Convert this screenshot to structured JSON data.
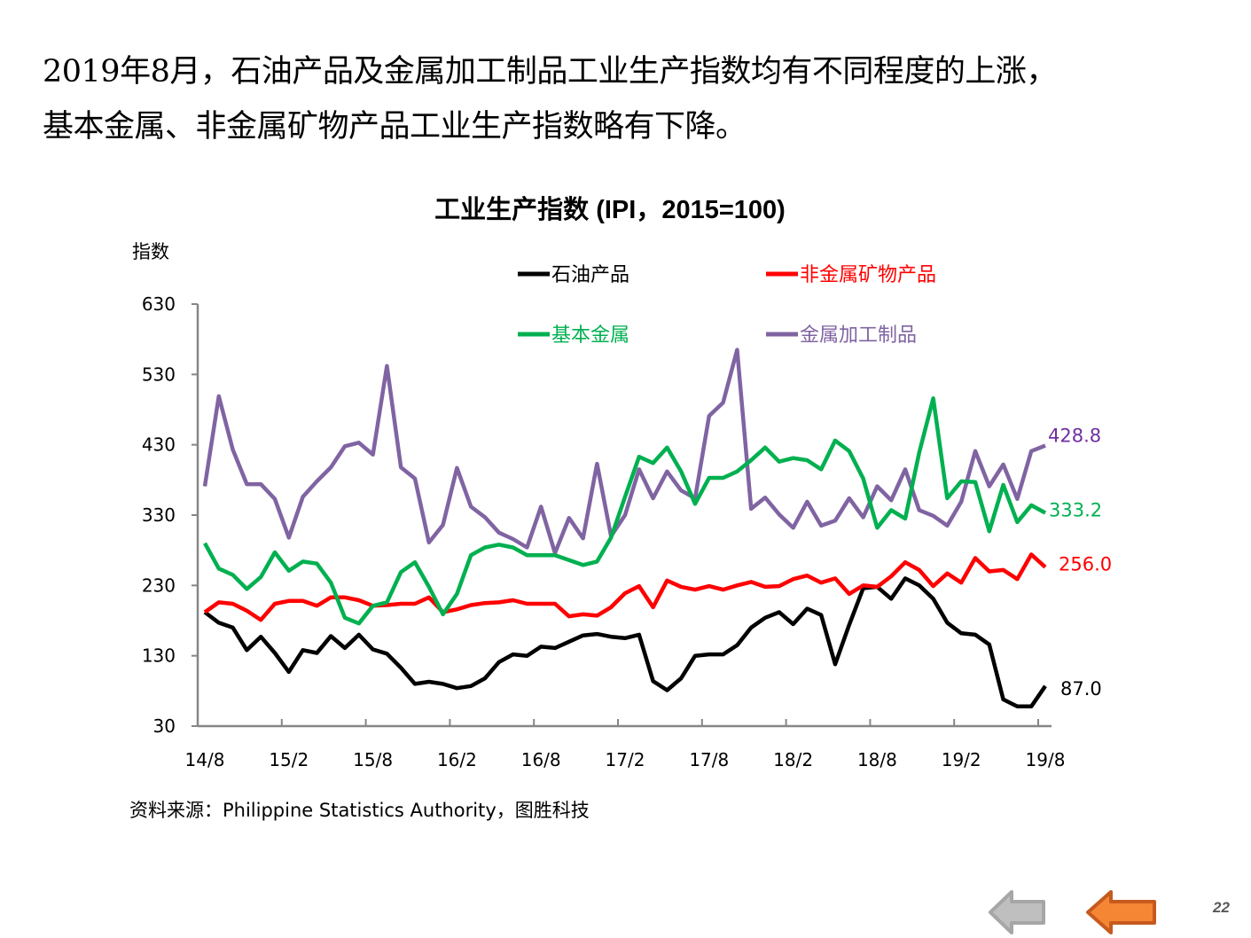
{
  "headline": {
    "line1": "2019年8月，石油产品及金属加工制品工业生产指数均有不同程度的上涨，",
    "line2": "基本金属、非金属矿物产品工业生产指数略有下降。"
  },
  "footer": {
    "source": "资料来源：Philippine  Statistics Authority，图胜科技",
    "page_number": "22"
  },
  "navigation": {
    "back_icon": "arrow-left-icon",
    "prev_icon": "arrow-left-icon",
    "back_color": "#A6A6A6",
    "prev_color": "#F58634"
  },
  "chart_data": {
    "type": "line",
    "title": "工业生产指数 (IPI，2015=100)",
    "ylabel": "指数",
    "xlabel": "",
    "ylim": [
      30,
      630
    ],
    "yticks": [
      "630",
      "530",
      "430",
      "330",
      "230",
      "130",
      "30"
    ],
    "ytick_values": [
      630,
      530,
      430,
      330,
      230,
      130,
      30
    ],
    "xtick_labels": [
      "14/8",
      "15/2",
      "15/8",
      "16/2",
      "16/8",
      "17/2",
      "17/8",
      "18/2",
      "18/8",
      "19/2",
      "19/8"
    ],
    "xtick_index": [
      0,
      6,
      12,
      18,
      24,
      30,
      36,
      42,
      48,
      54,
      60
    ],
    "grid": false,
    "legend_position": "top",
    "x": [
      "14/8",
      "14/9",
      "14/10",
      "14/11",
      "14/12",
      "15/1",
      "15/2",
      "15/3",
      "15/4",
      "15/5",
      "15/6",
      "15/7",
      "15/8",
      "15/9",
      "15/10",
      "15/11",
      "15/12",
      "16/1",
      "16/2",
      "16/3",
      "16/4",
      "16/5",
      "16/6",
      "16/7",
      "16/8",
      "16/9",
      "16/10",
      "16/11",
      "16/12",
      "17/1",
      "17/2",
      "17/3",
      "17/4",
      "17/5",
      "17/6",
      "17/7",
      "17/8",
      "17/9",
      "17/10",
      "17/11",
      "17/12",
      "18/1",
      "18/2",
      "18/3",
      "18/4",
      "18/5",
      "18/6",
      "18/7",
      "18/8",
      "18/9",
      "18/10",
      "18/11",
      "18/12",
      "19/1",
      "19/2",
      "19/3",
      "19/4",
      "19/5",
      "19/6",
      "19/7",
      "19/8"
    ],
    "series": [
      {
        "name": "石油产品",
        "color": "#000000",
        "end_label": "87.0",
        "values": [
          192,
          177,
          170,
          138,
          157,
          134,
          107,
          138,
          134,
          158,
          141,
          160,
          139,
          133,
          113,
          90,
          93,
          90,
          84,
          87,
          98,
          121,
          132,
          130,
          143,
          141,
          150,
          159,
          161,
          157,
          155,
          160,
          94,
          81,
          98,
          130,
          132,
          132,
          145,
          170,
          184,
          192,
          175,
          197,
          188,
          118,
          174,
          226,
          228,
          211,
          240,
          230,
          211,
          177,
          162,
          160,
          146,
          68,
          58,
          58,
          87.0
        ]
      },
      {
        "name": "非金属矿物产品",
        "color": "#FF0000",
        "end_label": "256.0",
        "values": [
          192,
          206,
          204,
          194,
          181,
          204,
          208,
          208,
          201,
          213,
          213,
          209,
          201,
          202,
          204,
          204,
          213,
          192,
          196,
          202,
          205,
          206,
          209,
          204,
          204,
          204,
          186,
          189,
          187,
          199,
          219,
          229,
          199,
          237,
          228,
          224,
          229,
          224,
          230,
          235,
          228,
          229,
          239,
          244,
          234,
          240,
          218,
          230,
          228,
          243,
          263,
          252,
          229,
          247,
          234,
          269,
          250,
          252,
          239,
          274,
          256.0
        ]
      },
      {
        "name": "基本金属",
        "color": "#00B050",
        "end_label": "333.2",
        "values": [
          290,
          254,
          245,
          225,
          242,
          277,
          251,
          264,
          261,
          234,
          184,
          176,
          201,
          206,
          249,
          263,
          228,
          189,
          218,
          273,
          284,
          288,
          284,
          273,
          273,
          273,
          266,
          259,
          264,
          298,
          356,
          413,
          404,
          426,
          392,
          346,
          383,
          383,
          392,
          408,
          426,
          406,
          411,
          408,
          395,
          436,
          421,
          382,
          312,
          337,
          325,
          419,
          496,
          354,
          378,
          377,
          307,
          373,
          320,
          344,
          333.2
        ]
      },
      {
        "name": "金属加工制品",
        "color": "#8064A2",
        "end_label": "428.8",
        "values": [
          371,
          499,
          423,
          374,
          374,
          353,
          298,
          356,
          378,
          398,
          428,
          433,
          416,
          542,
          398,
          382,
          291,
          316,
          397,
          342,
          327,
          305,
          296,
          284,
          342,
          276,
          326,
          297,
          403,
          300,
          330,
          395,
          354,
          392,
          365,
          354,
          471,
          490,
          565,
          339,
          355,
          331,
          312,
          349,
          315,
          322,
          354,
          327,
          371,
          351,
          395,
          337,
          329,
          315,
          349,
          421,
          371,
          402,
          353,
          421,
          428.8
        ]
      }
    ]
  }
}
